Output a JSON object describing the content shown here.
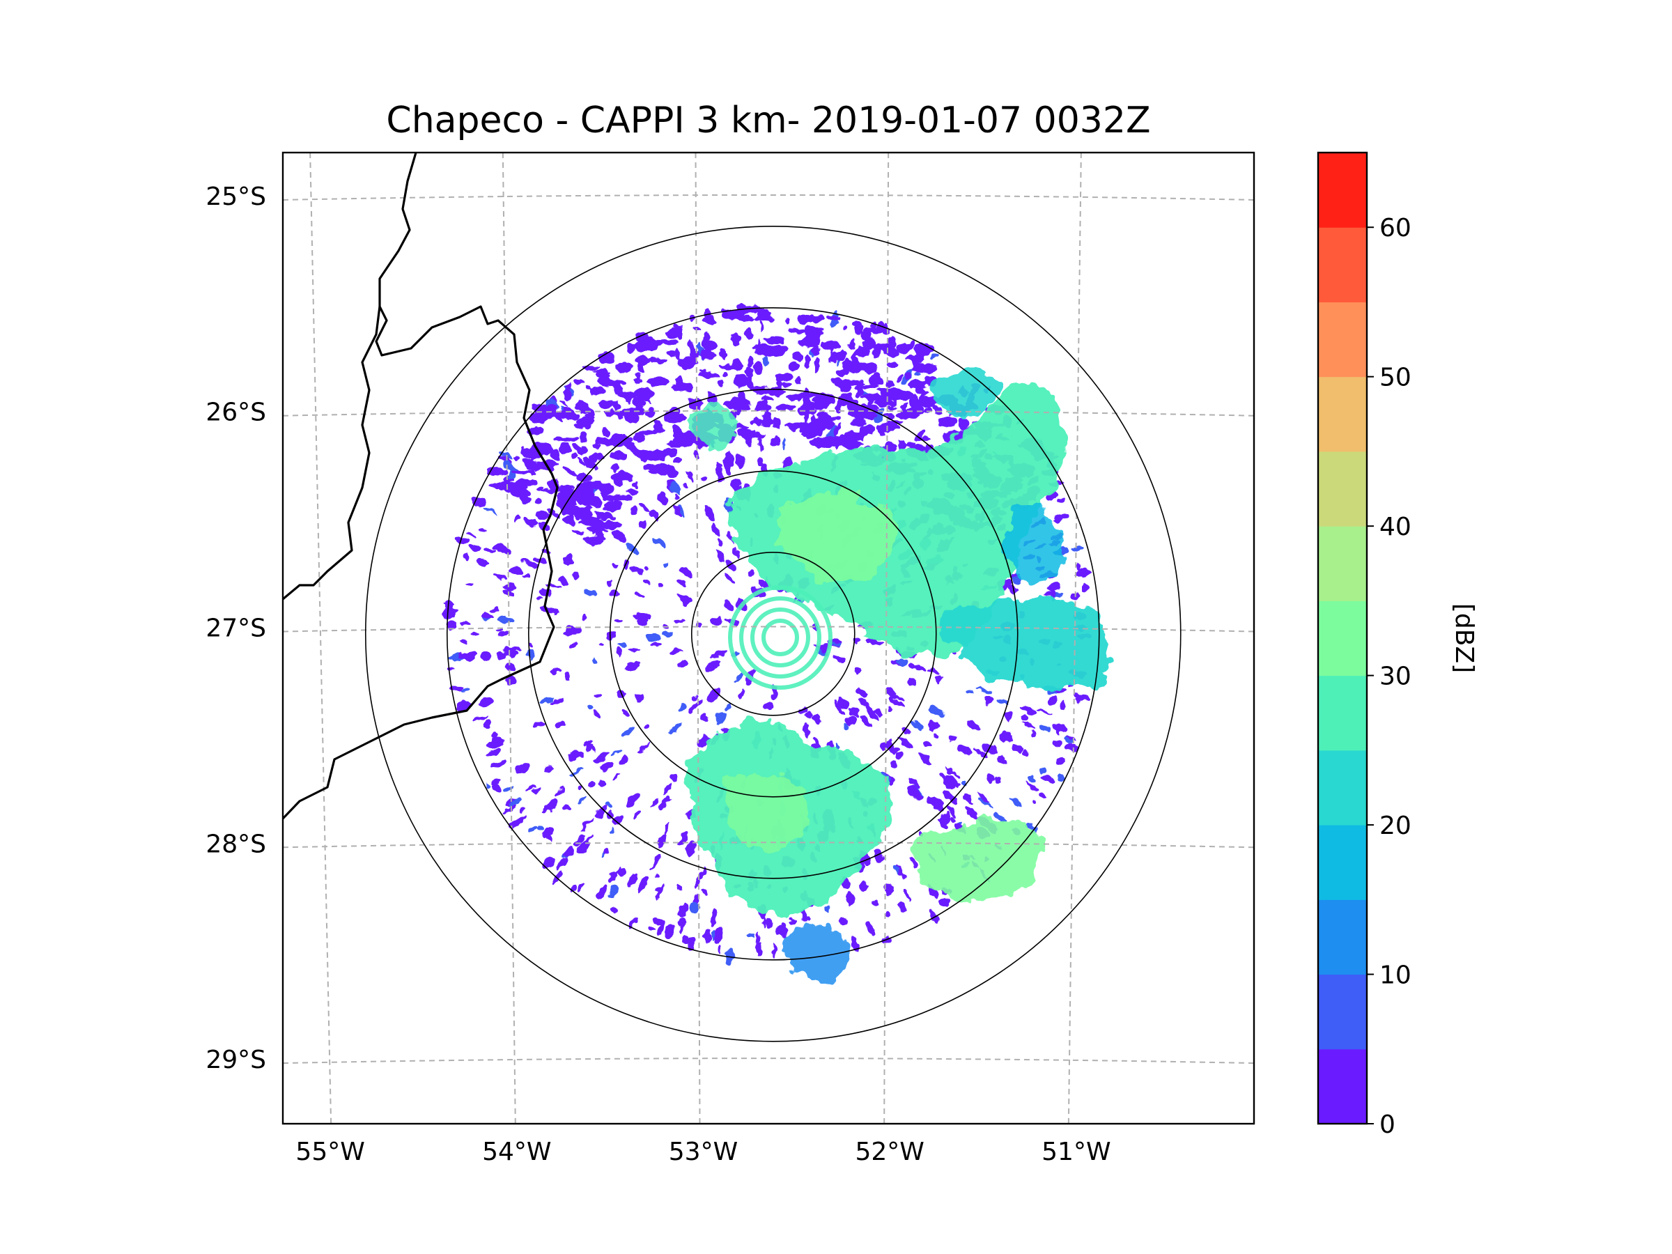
{
  "title": "Chapeco - CAPPI 3 km- 2019-01-07 0032Z",
  "map": {
    "lat_labels": [
      "25°S",
      "26°S",
      "27°S",
      "28°S",
      "29°S"
    ],
    "lon_labels": [
      "55°W",
      "54°W",
      "53°W",
      "52°W",
      "51°W"
    ],
    "lat_values": [
      -25,
      -26,
      -27,
      -28,
      -29
    ],
    "lon_values": [
      -55,
      -54,
      -53,
      -52,
      -51
    ],
    "extent": {
      "lon_min": -55.2,
      "lon_max": -50.05,
      "lat_min": -29.3,
      "lat_max": -24.8
    },
    "radar_site": {
      "name": "Chapeco",
      "lon": -52.6,
      "lat": -27.03
    },
    "range_rings_km": [
      50,
      100,
      150,
      200,
      250
    ],
    "gridline_style": "dashed gray"
  },
  "colorbar": {
    "label": "[dBZ]",
    "ticks": [
      "0",
      "10",
      "20",
      "30",
      "40",
      "50",
      "60"
    ],
    "range": [
      0,
      65
    ],
    "levels": [
      0,
      5,
      10,
      15,
      20,
      25,
      30,
      35,
      40,
      45,
      50,
      55,
      60,
      65
    ],
    "colors": [
      "#6a1bff",
      "#3f5df7",
      "#1e8ef0",
      "#0fbbe3",
      "#29d8d0",
      "#4ef0b8",
      "#7dfc9e",
      "#a8f08c",
      "#ccd97a",
      "#f0be6c",
      "#ff905a",
      "#ff5a3a",
      "#ff2016"
    ]
  },
  "colors": {
    "axes": "#000000",
    "gridline": "#b0b0b0",
    "coastline": "#000000",
    "rings": "#000000"
  }
}
